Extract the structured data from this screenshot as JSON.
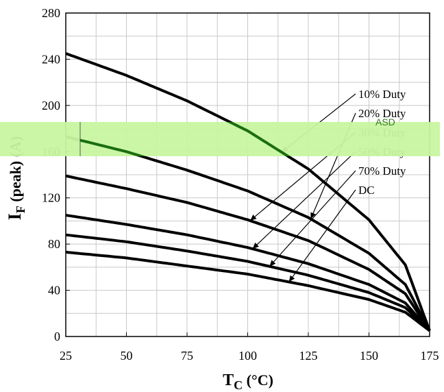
{
  "chart_data": {
    "type": "line",
    "xlabel": "TC (°C)",
    "ylabel": "IF (peak) (A)",
    "xlim": [
      25,
      175
    ],
    "ylim": [
      0,
      280
    ],
    "xticks": [
      25,
      50,
      75,
      100,
      125,
      150,
      175
    ],
    "yticks": [
      0,
      40,
      80,
      120,
      160,
      200,
      240,
      280
    ],
    "grid": true,
    "legend_placement": "right, with leader arrows to curves",
    "x": [
      25,
      50,
      75,
      100,
      125,
      150,
      165,
      175
    ],
    "series": [
      {
        "name": "10% Duty",
        "values": [
          245,
          226,
          204,
          178,
          145,
          101,
          62,
          5
        ]
      },
      {
        "name": "20% Duty",
        "values": [
          173,
          160,
          144,
          126,
          103,
          72,
          45,
          5
        ]
      },
      {
        "name": "30% Duty",
        "values": [
          139,
          128,
          116,
          101,
          83,
          58,
          37,
          5
        ]
      },
      {
        "name": "50% Duty",
        "values": [
          105,
          97,
          88,
          77,
          63,
          45,
          29,
          5
        ]
      },
      {
        "name": "70% Duty",
        "values": [
          88,
          82,
          74,
          65,
          53,
          38,
          25,
          5
        ]
      },
      {
        "name": "DC",
        "values": [
          73,
          68,
          61,
          54,
          44,
          32,
          21,
          5
        ]
      }
    ],
    "arrow_targets_x": [
      114,
      126,
      101,
      102,
      109,
      117
    ]
  },
  "overlay": {
    "text": "ASD"
  },
  "colors": {
    "curve": "#000000",
    "grid": "#c8c8c8",
    "overlay": "#c8f5a0",
    "overlay_curve": "#1a6e10"
  }
}
